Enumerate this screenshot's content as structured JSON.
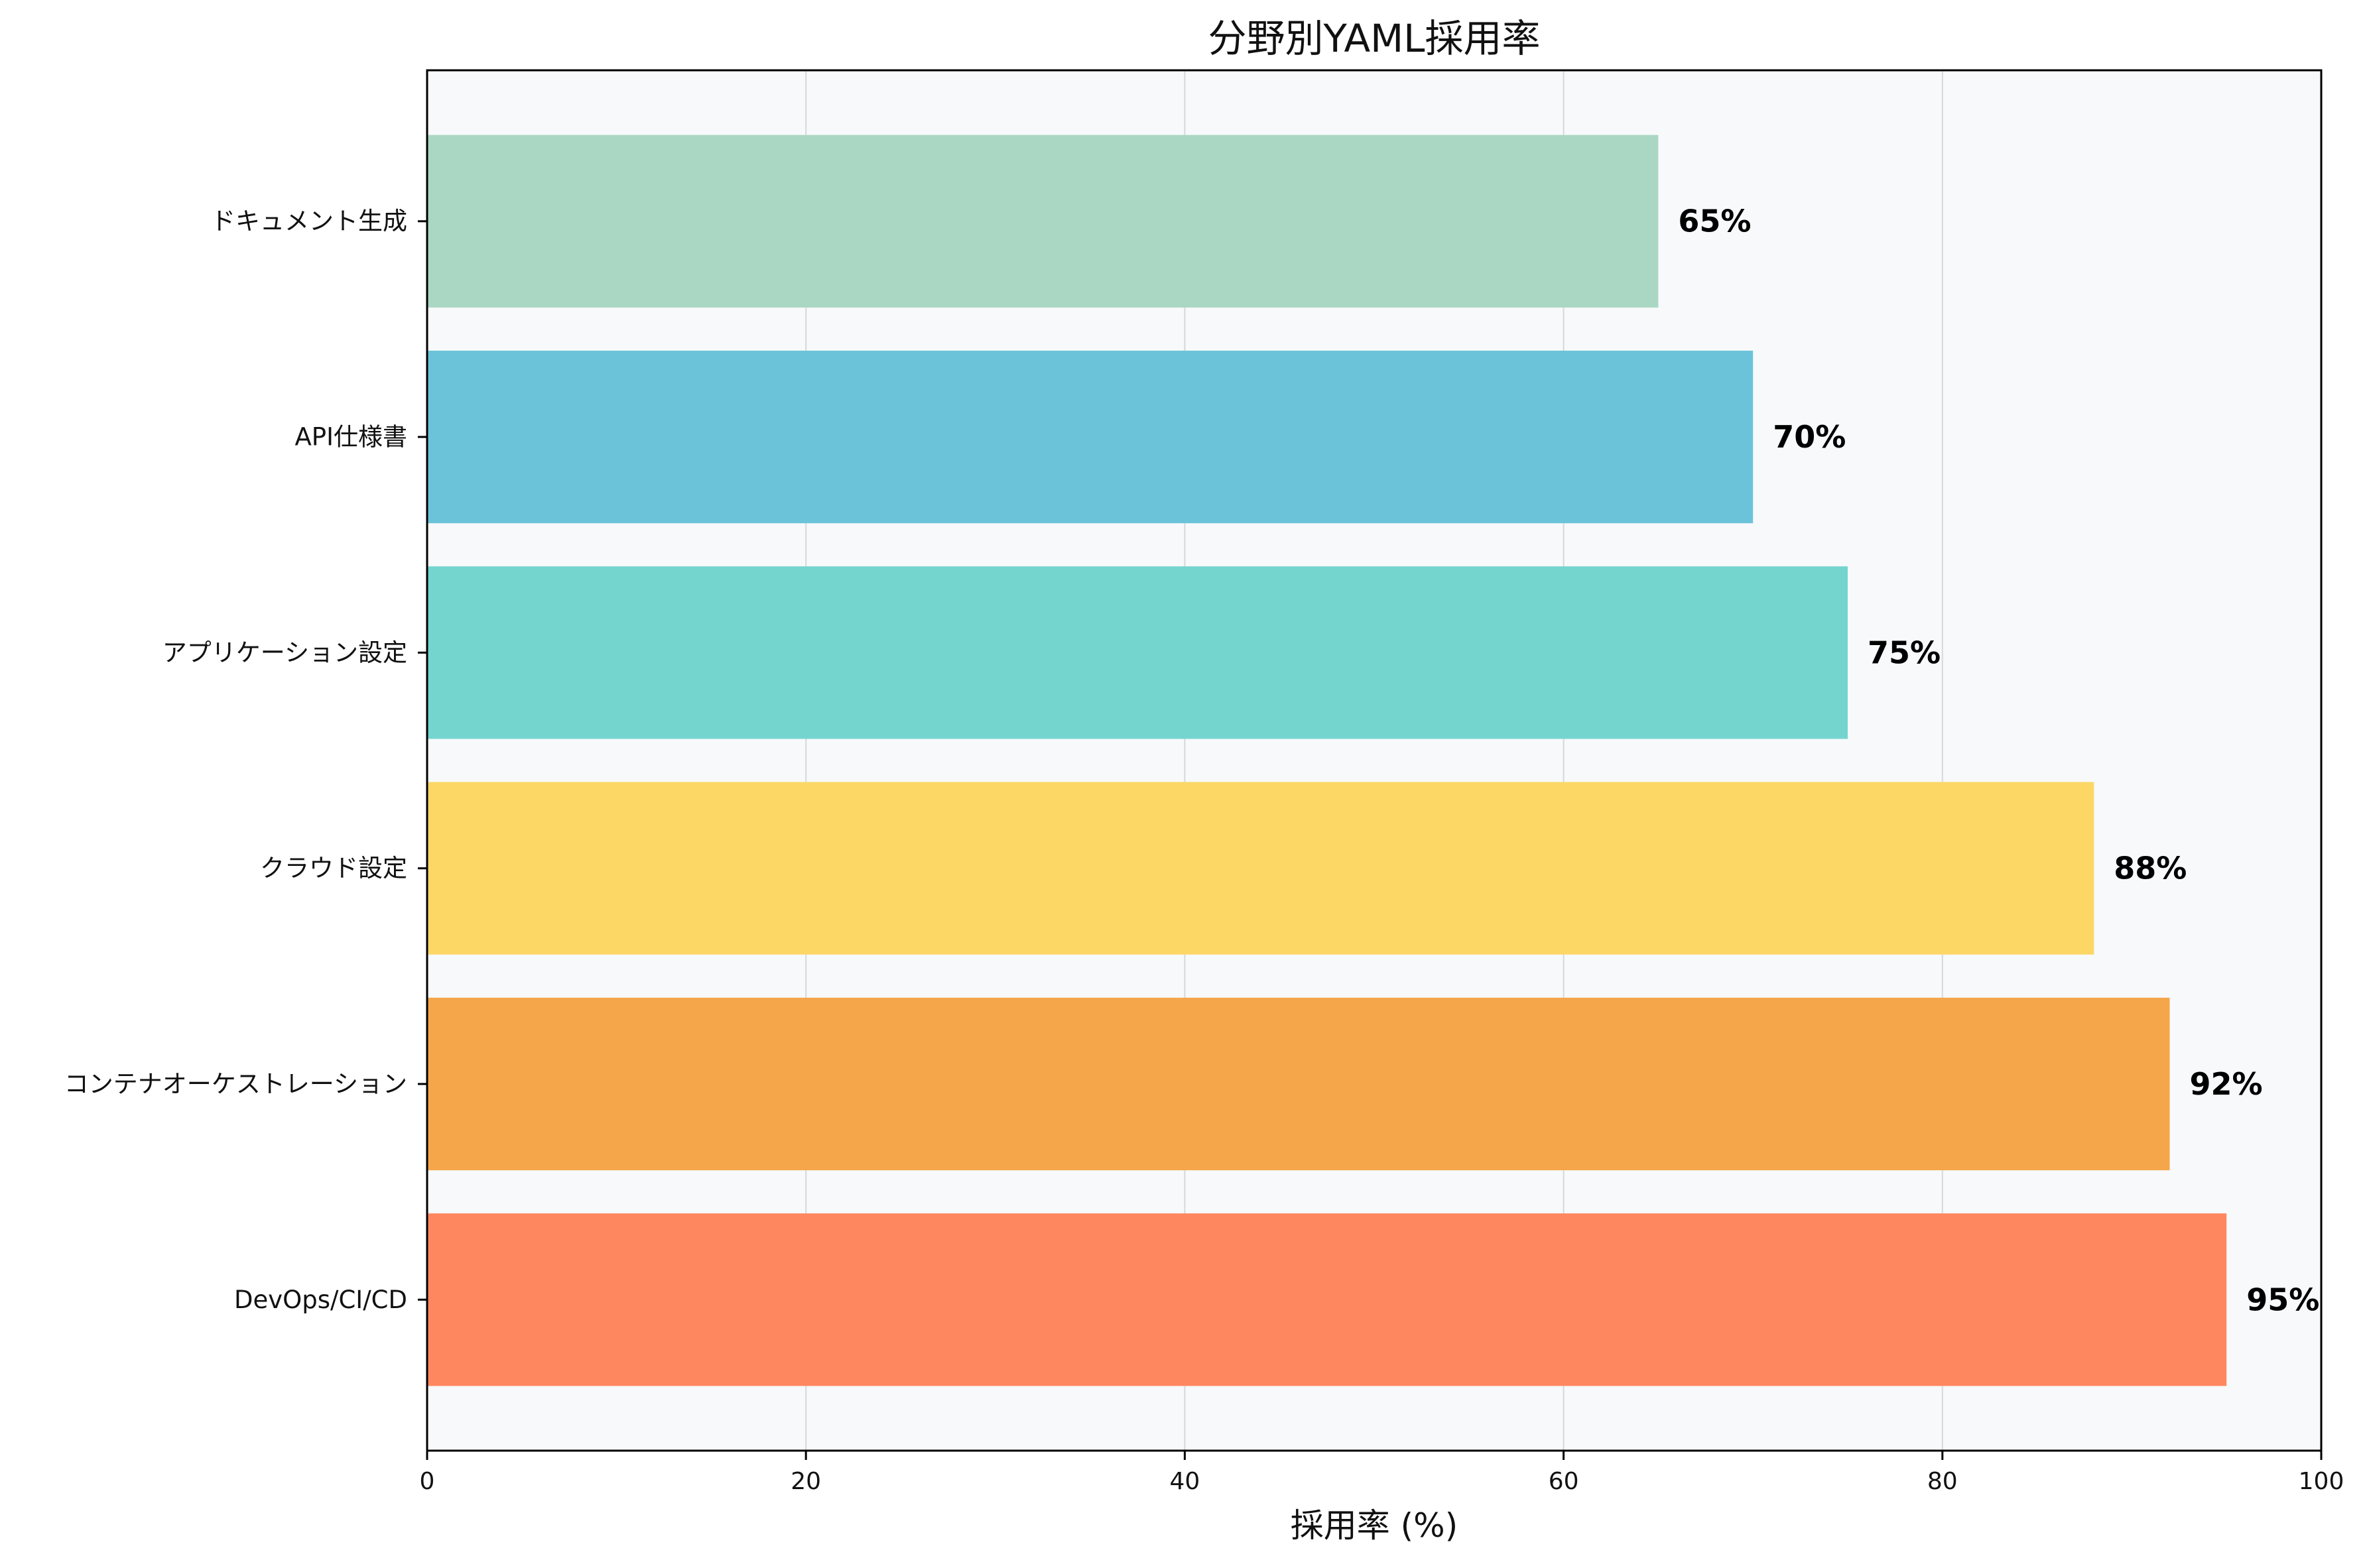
{
  "chart_data": {
    "type": "bar",
    "orientation": "horizontal",
    "title": "分野別YAML採用率",
    "xlabel": "採用率 (%)",
    "ylabel": "",
    "xlim": [
      0,
      100
    ],
    "xticks": [
      0,
      20,
      40,
      60,
      80,
      100
    ],
    "grid": true,
    "categories": [
      "DevOps/CI/CD",
      "コンテナオーケストレーション",
      "クラウド設定",
      "アプリケーション設定",
      "API仕様書",
      "ドキュメント生成"
    ],
    "values": [
      95,
      92,
      88,
      75,
      70,
      65
    ],
    "value_labels": [
      "95%",
      "92%",
      "88%",
      "75%",
      "70%",
      "65%"
    ],
    "colors": [
      "#FF8760",
      "#F5A64A",
      "#FCD766",
      "#74D5CF",
      "#6BC3D9",
      "#AAD7C3"
    ],
    "background": "#F7F9FA"
  }
}
